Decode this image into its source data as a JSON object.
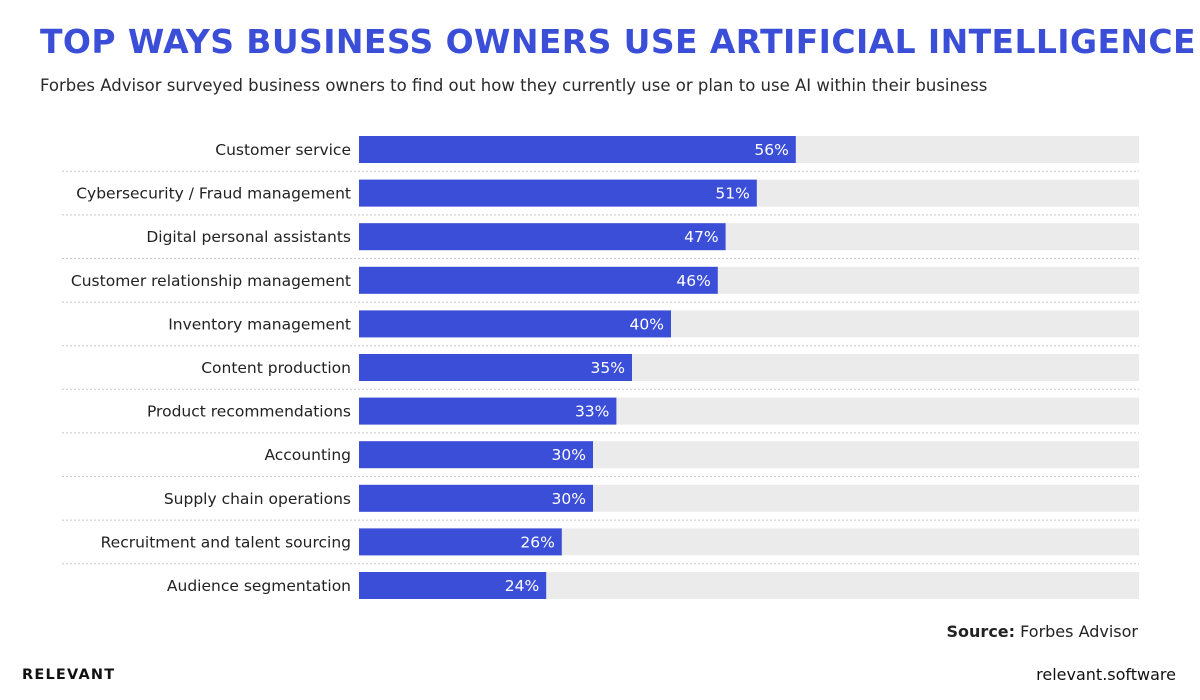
{
  "header": {
    "title": "TOP WAYS BUSINESS OWNERS USE ARTIFICIAL INTELLIGENCE",
    "subtitle": "Forbes Advisor surveyed business owners to find out how they currently use or plan to use AI within their business"
  },
  "footer": {
    "source_label": "Source:",
    "source_value": "Forbes Advisor",
    "brand": "RELEVANT",
    "site": "relevant.software"
  },
  "colors": {
    "title": "#3b4ed8",
    "bar": "#3b4ed8",
    "track": "#ebebeb",
    "divider": "#c8c8c8"
  },
  "chart_data": {
    "type": "bar",
    "orientation": "horizontal",
    "title": "TOP WAYS BUSINESS OWNERS USE ARTIFICIAL INTELLIGENCE",
    "xlabel": "",
    "ylabel": "",
    "xlim": [
      0,
      100
    ],
    "unit": "%",
    "grid": false,
    "categories": [
      "Customer service",
      "Cybersecurity / Fraud management",
      "Digital personal assistants",
      "Customer relationship management",
      "Inventory management",
      "Content production",
      "Product recommendations",
      "Accounting",
      "Supply chain operations",
      "Recruitment and talent sourcing",
      "Audience segmentation"
    ],
    "values": [
      56,
      51,
      47,
      46,
      40,
      35,
      33,
      30,
      30,
      26,
      24
    ]
  }
}
